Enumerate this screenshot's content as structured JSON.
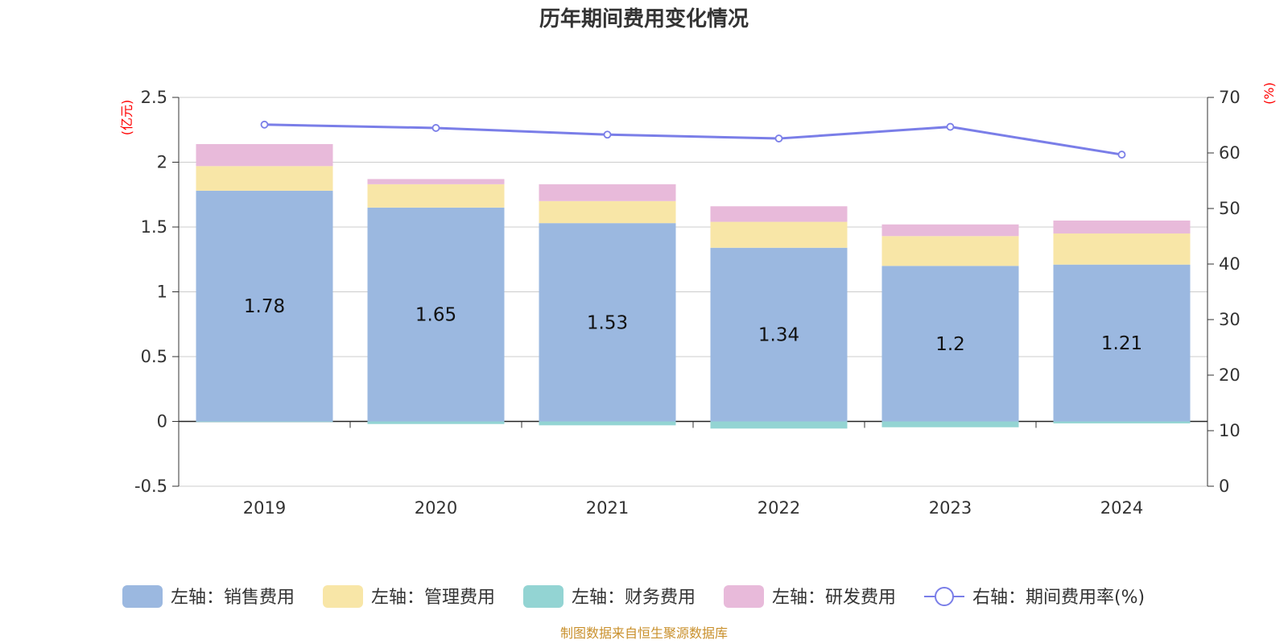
{
  "chart_data": {
    "type": "bar",
    "title": "历年期间费用变化情况",
    "categories": [
      "2019",
      "2020",
      "2021",
      "2022",
      "2023",
      "2024"
    ],
    "stacked": true,
    "y_left": {
      "unit": "(亿元)",
      "ylim": [
        -0.5,
        2.5
      ],
      "ticks": [
        "-0.5",
        "0",
        "0.5",
        "1",
        "1.5",
        "2",
        "2.5"
      ]
    },
    "y_right": {
      "unit": "(%)",
      "ylim": [
        0,
        70
      ],
      "ticks": [
        "0",
        "10",
        "20",
        "30",
        "40",
        "50",
        "60",
        "70"
      ]
    },
    "series": [
      {
        "name": "左轴：销售费用",
        "axis": "left",
        "type": "bar",
        "color": "#9bb8e0",
        "values": [
          1.78,
          1.65,
          1.53,
          1.34,
          1.2,
          1.21
        ],
        "labels": [
          "1.78",
          "1.65",
          "1.53",
          "1.34",
          "1.2",
          "1.21"
        ]
      },
      {
        "name": "左轴：管理费用",
        "axis": "left",
        "type": "bar",
        "color": "#f8e6a7",
        "values": [
          0.19,
          0.18,
          0.17,
          0.2,
          0.23,
          0.24
        ]
      },
      {
        "name": "左轴：财务费用",
        "axis": "left",
        "type": "bar",
        "color": "#93d4d3",
        "values": [
          -0.005,
          -0.02,
          -0.03,
          -0.055,
          -0.045,
          -0.015
        ]
      },
      {
        "name": "左轴：研发费用",
        "axis": "left",
        "type": "bar",
        "color": "#e8bada",
        "values": [
          0.17,
          0.04,
          0.13,
          0.12,
          0.09,
          0.1
        ]
      },
      {
        "name": "右轴：期间费用率(%)",
        "axis": "right",
        "type": "line",
        "color": "#7a7ee8",
        "values": [
          65.1,
          64.5,
          63.3,
          62.6,
          64.7,
          59.7
        ]
      }
    ],
    "grid": true,
    "legend_position": "bottom"
  },
  "footer": {
    "source": "制图数据来自恒生聚源数据库"
  }
}
